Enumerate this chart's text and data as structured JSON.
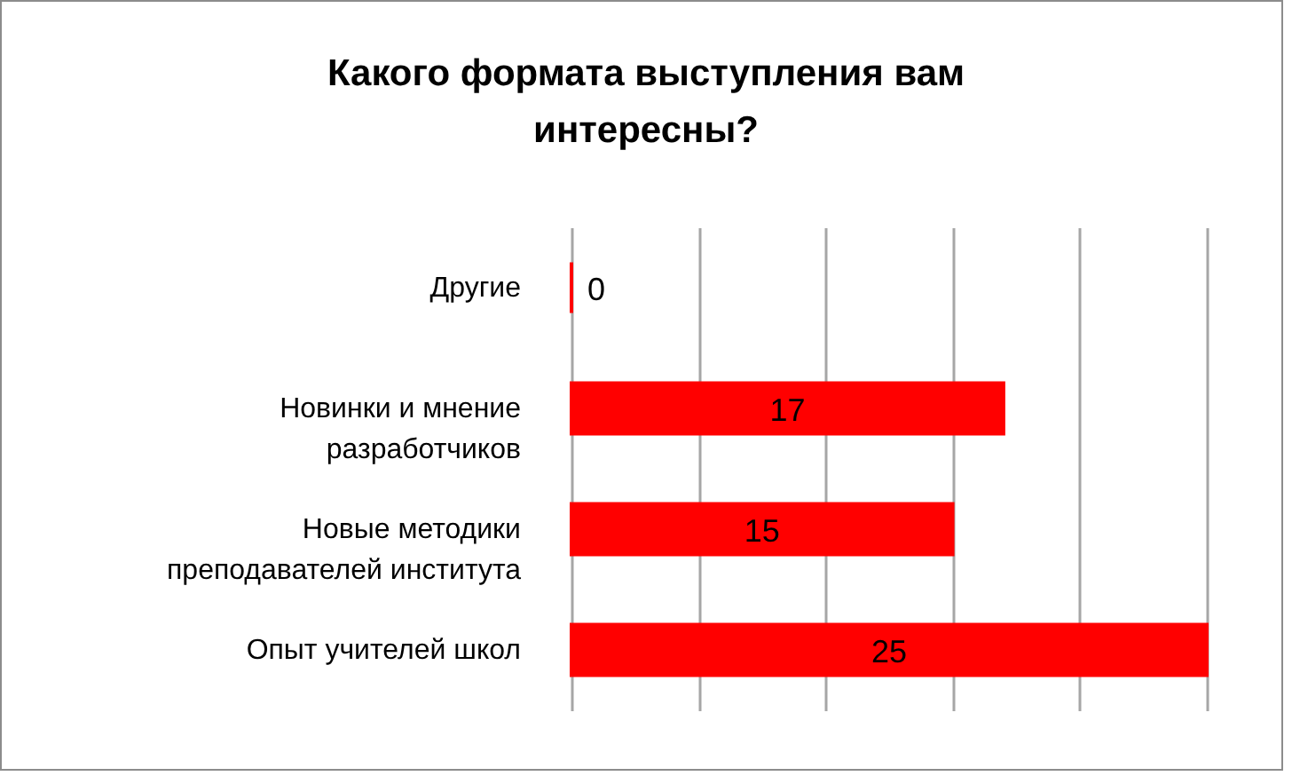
{
  "chart_data": {
    "type": "bar",
    "orientation": "horizontal",
    "title": "Какого формата выступления вам интересны?",
    "categories": [
      "Другие",
      "Новинки и мнение разработчиков",
      "Новые методики преподавателей института",
      "Опыт учителей школ"
    ],
    "values": [
      0,
      17,
      15,
      25
    ],
    "color": "#ff0000",
    "xlim": [
      0,
      25
    ],
    "xticks": [
      {
        "value": 0,
        "label": null
      },
      {
        "value": 5,
        "label": null
      },
      {
        "value": 10,
        "label": null
      },
      {
        "value": 15,
        "label": null
      },
      {
        "value": 20,
        "label": null
      },
      {
        "value": 25,
        "label": null
      }
    ],
    "grid": "x",
    "tick_labels": "y",
    "data_labels": true
  }
}
